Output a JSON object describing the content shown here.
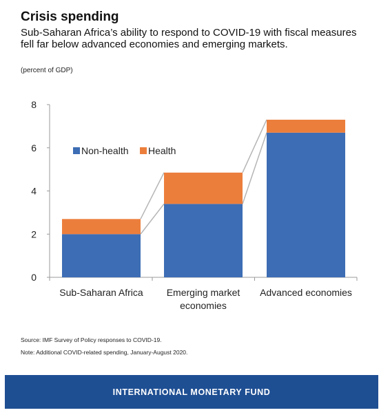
{
  "header": {
    "title": "Crisis spending",
    "subtitle": "Sub-Saharan Africa’s ability to respond to COVID-19 with fiscal measures fell far below advanced economies and emerging markets.",
    "units": "(percent of GDP)"
  },
  "chart_data": {
    "type": "bar",
    "stacked": true,
    "categories": [
      [
        "Sub-Saharan Africa"
      ],
      [
        "Emerging market",
        "economies"
      ],
      [
        "Advanced economies"
      ]
    ],
    "series": [
      {
        "name": "Non-health",
        "color": "#3d6db4",
        "values": [
          2.0,
          3.4,
          6.7
        ]
      },
      {
        "name": "Health",
        "color": "#ec7e3c",
        "values": [
          0.7,
          1.45,
          0.6
        ]
      }
    ],
    "ylim": [
      0,
      8
    ],
    "yticks": [
      "0",
      "2",
      "4",
      "6",
      "8"
    ],
    "ytick_values": [
      0,
      2,
      4,
      6,
      8
    ],
    "legend_position": "top-left",
    "connector_lines": true,
    "grid": false
  },
  "footnotes": {
    "source": "Source: IMF Survey of Policy responses to COVID-19.",
    "note": "Note: Additional COVID-related spending, January-August 2020."
  },
  "footer": {
    "label": "INTERNATIONAL MONETARY FUND",
    "background": "#1f4f93"
  }
}
